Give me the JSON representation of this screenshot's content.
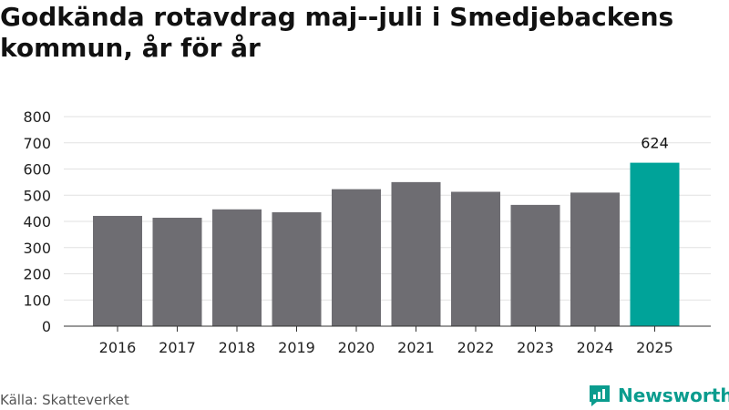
{
  "title": "Godkända rotavdrag maj--juli i Smedjebackens kommun, år för år",
  "source": "Källa: Skatteverket",
  "brand": {
    "name": "Newsworthy",
    "icon": "newsworthy-logo-icon"
  },
  "colors": {
    "bar": "#6e6d72",
    "highlight": "#00a399",
    "grid": "#e2e2e2",
    "axis": "#333333"
  },
  "chart_data": {
    "type": "bar",
    "title": "Godkända rotavdrag maj--juli i Smedjebackens kommun, år för år",
    "xlabel": "",
    "ylabel": "",
    "categories": [
      "2016",
      "2017",
      "2018",
      "2019",
      "2020",
      "2021",
      "2022",
      "2023",
      "2024",
      "2025"
    ],
    "values": [
      421,
      414,
      446,
      435,
      523,
      550,
      513,
      463,
      510,
      624
    ],
    "highlight_index": 9,
    "data_labels": [
      {
        "index": 9,
        "text": "624"
      }
    ],
    "ylim": [
      0,
      800
    ],
    "yticks": [
      0,
      100,
      200,
      300,
      400,
      500,
      600,
      700,
      800
    ],
    "grid": true,
    "legend": "none"
  }
}
